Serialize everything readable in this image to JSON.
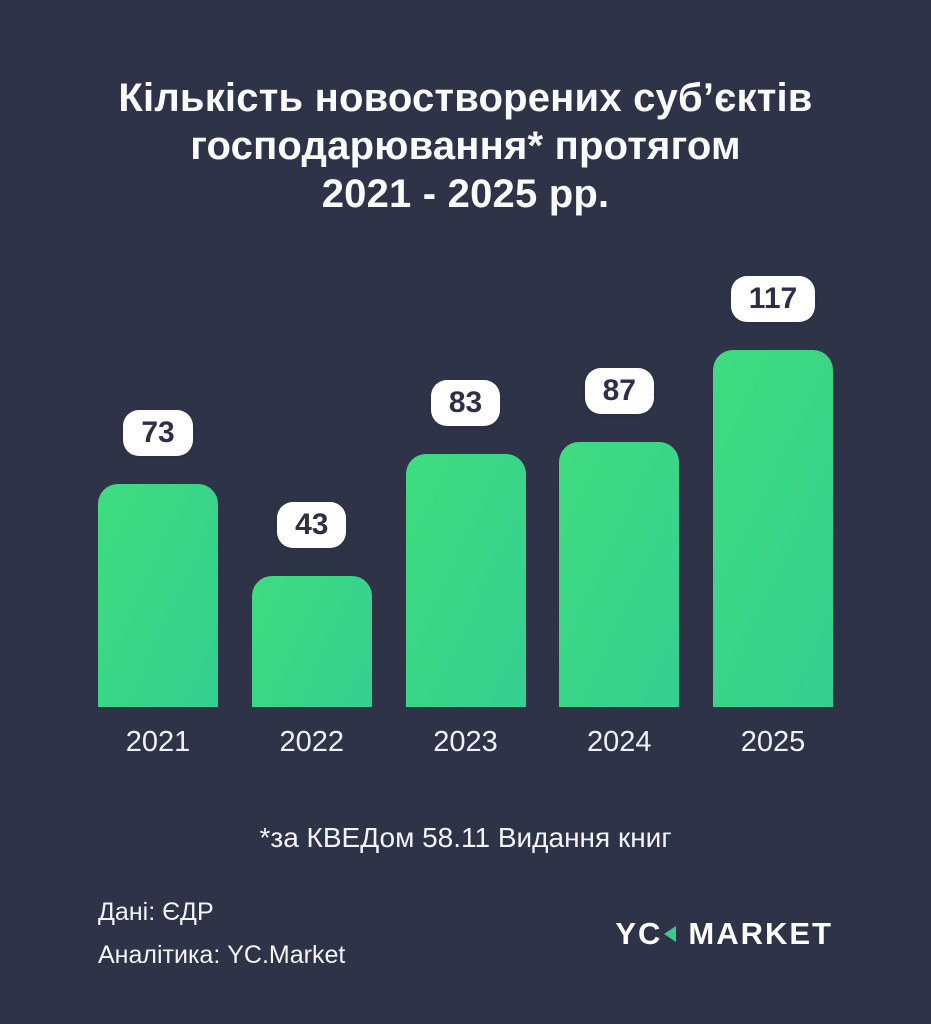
{
  "page": {
    "background": "#2e3348"
  },
  "title": {
    "line1": "Кількість новостворених суб’єктів",
    "line2": "господарювання* протягом",
    "line3": "2021 - 2025 рр."
  },
  "chart_data": {
    "type": "bar",
    "categories": [
      "2021",
      "2022",
      "2023",
      "2024",
      "2025"
    ],
    "values": [
      73,
      43,
      83,
      87,
      117
    ],
    "title": "Кількість новостворених суб’єктів господарювання* протягом 2021 - 2025 рр.",
    "xlabel": "",
    "ylabel": "",
    "ylim": [
      0,
      117
    ],
    "grid": false,
    "legend": false,
    "data_labels": "white rounded badges above each bar",
    "bar_color_start": "#3edc7e",
    "bar_color_end": "#36cf92",
    "badge_bg": "#ffffff",
    "badge_text_color": "#2b3047"
  },
  "footnote": "*за КВЕДом 58.11 Видання книг",
  "footer": {
    "source_line": "Дані: ЄДР",
    "analytics_line": "Аналітика: YC.Market"
  },
  "logo": {
    "text_left": "YC",
    "text_right": "MARKET",
    "triangle_icon": "left-pointing-triangle",
    "triangle_color": "#3cc98a"
  }
}
